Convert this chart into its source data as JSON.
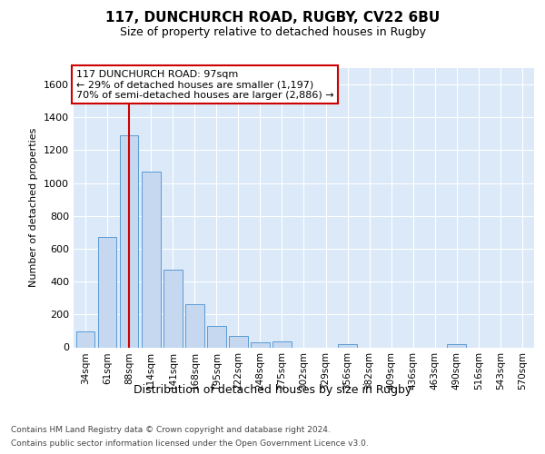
{
  "title1": "117, DUNCHURCH ROAD, RUGBY, CV22 6BU",
  "title2": "Size of property relative to detached houses in Rugby",
  "xlabel": "Distribution of detached houses by size in Rugby",
  "ylabel": "Number of detached properties",
  "footer1": "Contains HM Land Registry data © Crown copyright and database right 2024.",
  "footer2": "Contains public sector information licensed under the Open Government Licence v3.0.",
  "annotation_line1": "117 DUNCHURCH ROAD: 97sqm",
  "annotation_line2": "← 29% of detached houses are smaller (1,197)",
  "annotation_line3": "70% of semi-detached houses are larger (2,886) →",
  "bar_labels": [
    "34sqm",
    "61sqm",
    "88sqm",
    "114sqm",
    "141sqm",
    "168sqm",
    "195sqm",
    "222sqm",
    "248sqm",
    "275sqm",
    "302sqm",
    "329sqm",
    "356sqm",
    "382sqm",
    "409sqm",
    "436sqm",
    "463sqm",
    "490sqm",
    "516sqm",
    "543sqm",
    "570sqm"
  ],
  "bar_values": [
    95,
    670,
    1290,
    1070,
    470,
    265,
    130,
    68,
    30,
    35,
    0,
    0,
    17,
    0,
    0,
    0,
    0,
    17,
    0,
    0,
    0
  ],
  "bar_color": "#c5d8ef",
  "bar_edge_color": "#5b9bd5",
  "red_line_x": 2.0,
  "ylim": [
    0,
    1700
  ],
  "yticks": [
    0,
    200,
    400,
    600,
    800,
    1000,
    1200,
    1400,
    1600
  ],
  "bg_color": "#dce9f8",
  "annotation_box_facecolor": "#ffffff",
  "annotation_box_edgecolor": "#cc0000",
  "red_line_color": "#cc0000",
  "title1_fontsize": 11,
  "title2_fontsize": 9,
  "ylabel_fontsize": 8,
  "xlabel_fontsize": 9,
  "tick_fontsize": 8,
  "xtick_fontsize": 7.5,
  "footer_fontsize": 6.5,
  "ann_fontsize": 8
}
